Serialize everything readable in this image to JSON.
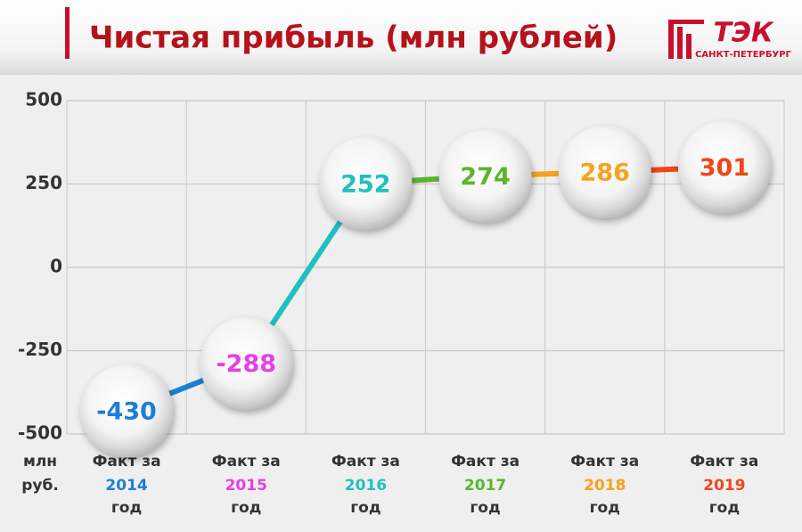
{
  "chart_data": {
    "type": "line",
    "title": "Чистая прибыль (млн рублей)",
    "logo": {
      "name": "ТЭК",
      "city": "САНКТ-ПЕТЕРБУРГ"
    },
    "y_label": [
      "млн",
      "руб."
    ],
    "category_prefix": "Факт за",
    "category_suffix": "год",
    "categories": [
      "2014",
      "2015",
      "2016",
      "2017",
      "2018",
      "2019"
    ],
    "values": [
      -430,
      -288,
      252,
      274,
      286,
      301
    ],
    "colors": [
      "#1a7fd4",
      "#e83ee8",
      "#1fc1bd",
      "#5bb52a",
      "#f6a21f",
      "#f0461a"
    ],
    "segment_colors": [
      "#1a7fd4",
      "#1fc1bd",
      "#5bb52a",
      "#f6a21f",
      "#f0461a"
    ],
    "ylim": [
      -500,
      500
    ],
    "yticks": [
      500,
      250,
      0,
      -250,
      -500
    ],
    "grid": true
  }
}
